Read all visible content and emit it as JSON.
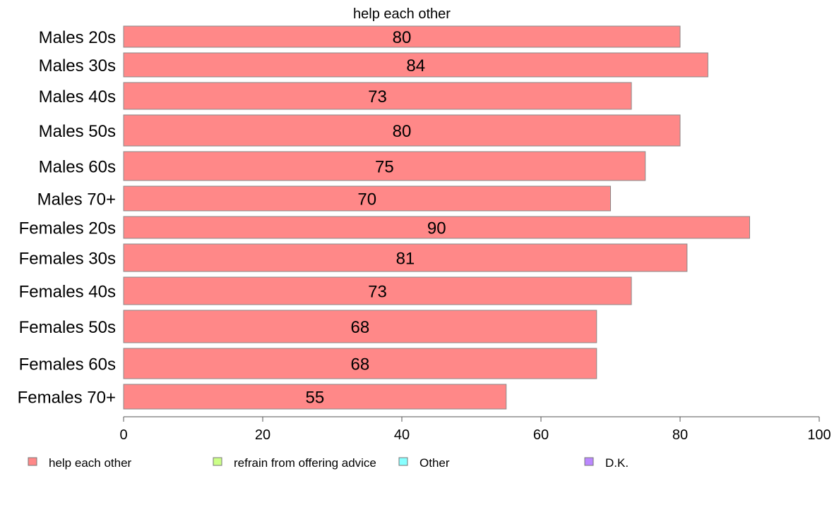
{
  "chart_data": {
    "type": "bar",
    "orientation": "horizontal",
    "title": "help each other",
    "categories": [
      "Males 20s",
      "Males 30s",
      "Males 40s",
      "Males 50s",
      "Males 60s",
      "Males 70+",
      "Females 20s",
      "Females 30s",
      "Females 40s",
      "Females 50s",
      "Females 60s",
      "Females 70+"
    ],
    "series": [
      {
        "name": "help each other",
        "color": "#ff8888",
        "values": [
          80,
          84,
          73,
          80,
          75,
          70,
          90,
          81,
          73,
          68,
          68,
          55
        ]
      }
    ],
    "data_labels": [
      "80",
      "84",
      "73",
      "80",
      "75",
      "70",
      "90",
      "81",
      "73",
      "68",
      "68",
      "55"
    ],
    "xlim": [
      0,
      100
    ],
    "x_ticks": [
      "0",
      "20",
      "40",
      "60",
      "80",
      "100"
    ],
    "grid": false,
    "legend_position": "bottom",
    "legend": [
      {
        "label": "help each other",
        "color": "#ff8888"
      },
      {
        "label": "refrain from offering advice",
        "color": "#ccff88"
      },
      {
        "label": "Other",
        "color": "#88ffff"
      },
      {
        "label": "D.K.",
        "color": "#bb88ff"
      }
    ]
  }
}
